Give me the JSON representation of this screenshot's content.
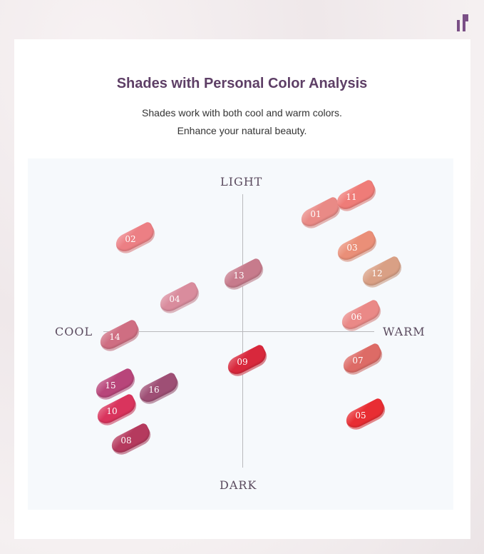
{
  "brand_color": "#7a4f86",
  "header": {
    "title": "Shades with Personal Color Analysis",
    "subtitle_1": "Shades work with both cool and warm colors.",
    "subtitle_2": "Enhance your natural beauty."
  },
  "axes": {
    "top": "LIGHT",
    "bottom": "DARK",
    "left": "COOL",
    "right": "WARM"
  },
  "shades": [
    {
      "id": "01",
      "color": "#e98a86"
    },
    {
      "id": "11",
      "color": "#ef7c78"
    },
    {
      "id": "02",
      "color": "#ec7f84"
    },
    {
      "id": "03",
      "color": "#ea8f78"
    },
    {
      "id": "12",
      "color": "#d9a085"
    },
    {
      "id": "13",
      "color": "#c77b8c"
    },
    {
      "id": "04",
      "color": "#d98c9d"
    },
    {
      "id": "06",
      "color": "#ea8987"
    },
    {
      "id": "14",
      "color": "#cf6e82"
    },
    {
      "id": "09",
      "color": "#d8283c"
    },
    {
      "id": "07",
      "color": "#dd6b66"
    },
    {
      "id": "15",
      "color": "#b8457a"
    },
    {
      "id": "16",
      "color": "#9e4f75"
    },
    {
      "id": "10",
      "color": "#d9345d"
    },
    {
      "id": "05",
      "color": "#e82d33"
    },
    {
      "id": "08",
      "color": "#b53a5e"
    }
  ]
}
